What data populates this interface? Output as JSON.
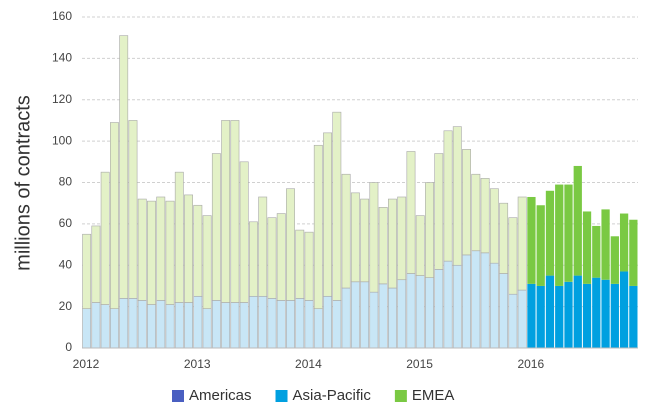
{
  "chart_data": {
    "type": "stacked_bar",
    "y_label": "millions of contracts",
    "categories": [
      "2012",
      null,
      null,
      null,
      null,
      null,
      null,
      null,
      null,
      null,
      null,
      null,
      "2013",
      null,
      null,
      null,
      null,
      null,
      null,
      null,
      null,
      null,
      null,
      null,
      "2014",
      null,
      null,
      null,
      null,
      null,
      null,
      null,
      null,
      null,
      null,
      null,
      "2015",
      null,
      null,
      null,
      null,
      null,
      null,
      null,
      null,
      null,
      null,
      null,
      "2016",
      null,
      null,
      null,
      null,
      null,
      null,
      null,
      null,
      null,
      null,
      null
    ],
    "highlight_from": "2016",
    "series": [
      {
        "name": "Americas",
        "color": "#4a5fc1",
        "highlight_color": "#4a5fc1",
        "values": [
          0,
          0,
          0,
          0,
          0,
          0,
          0,
          0,
          0,
          0,
          0,
          0,
          0,
          0,
          0,
          0,
          0,
          0,
          0,
          0,
          0,
          0,
          0,
          0,
          0,
          0,
          0,
          0,
          0,
          0,
          0,
          0,
          0,
          0,
          0,
          0,
          0,
          0,
          0,
          0,
          0,
          0,
          0,
          0,
          0,
          0,
          0,
          0,
          0,
          0,
          0,
          0,
          0,
          0,
          0,
          0,
          0,
          0,
          0,
          0
        ]
      },
      {
        "name": "Asia-Pacific",
        "color": "#c8e6f6",
        "highlight_color": "#00a0e0",
        "values": [
          19,
          22,
          21,
          19,
          24,
          24,
          23,
          21,
          23,
          21,
          22,
          22,
          25,
          19,
          23,
          22,
          22,
          22,
          25,
          25,
          24,
          23,
          23,
          24,
          23,
          19,
          25,
          23,
          29,
          32,
          32,
          27,
          31,
          29,
          33,
          36,
          35,
          34,
          38,
          42,
          40,
          45,
          47,
          46,
          41,
          36,
          26,
          28,
          31,
          30,
          35,
          30,
          32,
          35,
          31,
          34,
          33,
          31,
          37,
          30
        ]
      },
      {
        "name": "EMEA",
        "color": "#e3f1c7",
        "highlight_color": "#7ac943",
        "values": [
          36,
          37,
          64,
          90,
          127,
          86,
          49,
          50,
          50,
          50,
          63,
          52,
          44,
          45,
          71,
          88,
          88,
          68,
          36,
          48,
          39,
          42,
          54,
          33,
          33,
          79,
          79,
          91,
          55,
          43,
          40,
          53,
          37,
          43,
          40,
          59,
          29,
          46,
          56,
          63,
          67,
          51,
          37,
          36,
          36,
          34,
          37,
          45,
          42,
          39,
          41,
          49,
          47,
          53,
          35,
          25,
          34,
          23,
          28,
          32
        ]
      }
    ],
    "ylim": [
      0,
      160
    ],
    "yticks": [
      0,
      20,
      40,
      60,
      80,
      100,
      120,
      140,
      160
    ],
    "grid": true,
    "legend": "bottom"
  }
}
